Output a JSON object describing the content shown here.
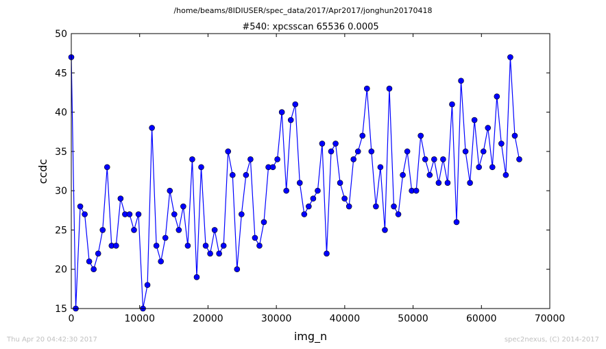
{
  "suptitle": "/home/beams/8IDIUSER/spec_data/2017/Apr2017/jonghun20170418",
  "footer_left": "Thu Apr 20 04:42:30 2017",
  "footer_right": "spec2nexus, (C) 2014-2017",
  "chart_data": {
    "type": "line",
    "title": "#540: xpcsscan 65536 0.0005",
    "xlabel": "img_n",
    "ylabel": "ccdc",
    "xlim": [
      0,
      70000
    ],
    "ylim": [
      15,
      50
    ],
    "xticks": [
      0,
      10000,
      20000,
      30000,
      40000,
      50000,
      60000,
      70000
    ],
    "xtick_labels": [
      "0",
      "10000",
      "20000",
      "30000",
      "40000",
      "50000",
      "60000",
      "70000"
    ],
    "yticks": [
      15,
      20,
      25,
      30,
      35,
      40,
      45,
      50
    ],
    "ytick_labels": [
      "15",
      "20",
      "25",
      "30",
      "35",
      "40",
      "45",
      "50"
    ],
    "grid": false,
    "line_color": "#0000ff",
    "marker_color": "#0000ff",
    "series": [
      {
        "x": [
          0,
          655,
          1311,
          1966,
          2621,
          3277,
          3932,
          4588,
          5243,
          5898,
          6554,
          7209,
          7864,
          8520,
          9175,
          9830,
          10486,
          11141,
          11796,
          12452,
          13107,
          13763,
          14418,
          15073,
          15729,
          16384,
          17039,
          17695,
          18350,
          19005,
          19661,
          20316,
          20972,
          21627,
          22282,
          22938,
          23593,
          24248,
          24904,
          25559,
          26214,
          26870,
          27525,
          28180,
          28836,
          29491,
          30147,
          30802,
          31457,
          32113,
          32768,
          33423,
          34079,
          34734,
          35389,
          36045,
          36700,
          37356,
          38011,
          38666,
          39322,
          39977,
          40632,
          41288,
          41943,
          42598,
          43254,
          43909,
          44564,
          45220,
          45875,
          46531,
          47186,
          47841,
          48497,
          49152,
          49807,
          50463,
          51118,
          51773,
          52429,
          53084,
          53740,
          54395,
          55050,
          55706,
          56361,
          57016,
          57672,
          58327,
          58982,
          59638,
          60293,
          60949,
          61604,
          62259,
          62915,
          63570,
          64225,
          64881,
          65536
        ],
        "y": [
          47,
          15,
          28,
          27,
          21,
          20,
          22,
          25,
          33,
          23,
          23,
          29,
          27,
          27,
          25,
          27,
          15,
          18,
          38,
          23,
          21,
          24,
          30,
          27,
          25,
          28,
          23,
          34,
          19,
          33,
          23,
          22,
          25,
          22,
          23,
          35,
          32,
          20,
          27,
          32,
          34,
          24,
          23,
          26,
          33,
          33,
          34,
          40,
          30,
          39,
          41,
          31,
          27,
          28,
          29,
          30,
          36,
          22,
          35,
          36,
          31,
          29,
          28,
          34,
          35,
          37,
          43,
          35,
          28,
          33,
          25,
          43,
          28,
          27,
          32,
          35,
          30,
          30,
          37,
          34,
          32,
          34,
          31,
          34,
          31,
          41,
          26,
          44,
          35,
          31,
          39,
          33,
          35,
          38,
          33,
          42,
          36,
          32,
          47,
          37,
          34
        ]
      }
    ]
  }
}
